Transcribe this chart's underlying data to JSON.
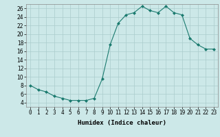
{
  "x": [
    0,
    1,
    2,
    3,
    4,
    5,
    6,
    7,
    8,
    9,
    10,
    11,
    12,
    13,
    14,
    15,
    16,
    17,
    18,
    19,
    20,
    21,
    22,
    23
  ],
  "y": [
    8,
    7,
    6.5,
    5.5,
    5,
    4.5,
    4.5,
    4.5,
    5,
    9.5,
    17.5,
    22.5,
    24.5,
    25,
    26.5,
    25.5,
    25,
    26.5,
    25,
    24.5,
    19,
    17.5,
    16.5,
    16.5
  ],
  "line_color": "#1a7a6e",
  "marker": "D",
  "marker_size": 2,
  "bg_color": "#cce8e8",
  "grid_color": "#aacccc",
  "xlabel": "Humidex (Indice chaleur)",
  "xlim": [
    -0.5,
    23.5
  ],
  "ylim": [
    3,
    27
  ],
  "yticks": [
    4,
    6,
    8,
    10,
    12,
    14,
    16,
    18,
    20,
    22,
    24,
    26
  ],
  "xticks": [
    0,
    1,
    2,
    3,
    4,
    5,
    6,
    7,
    8,
    9,
    10,
    11,
    12,
    13,
    14,
    15,
    16,
    17,
    18,
    19,
    20,
    21,
    22,
    23
  ],
  "xlabel_fontsize": 6.5,
  "tick_fontsize": 5.5,
  "linewidth": 0.8
}
